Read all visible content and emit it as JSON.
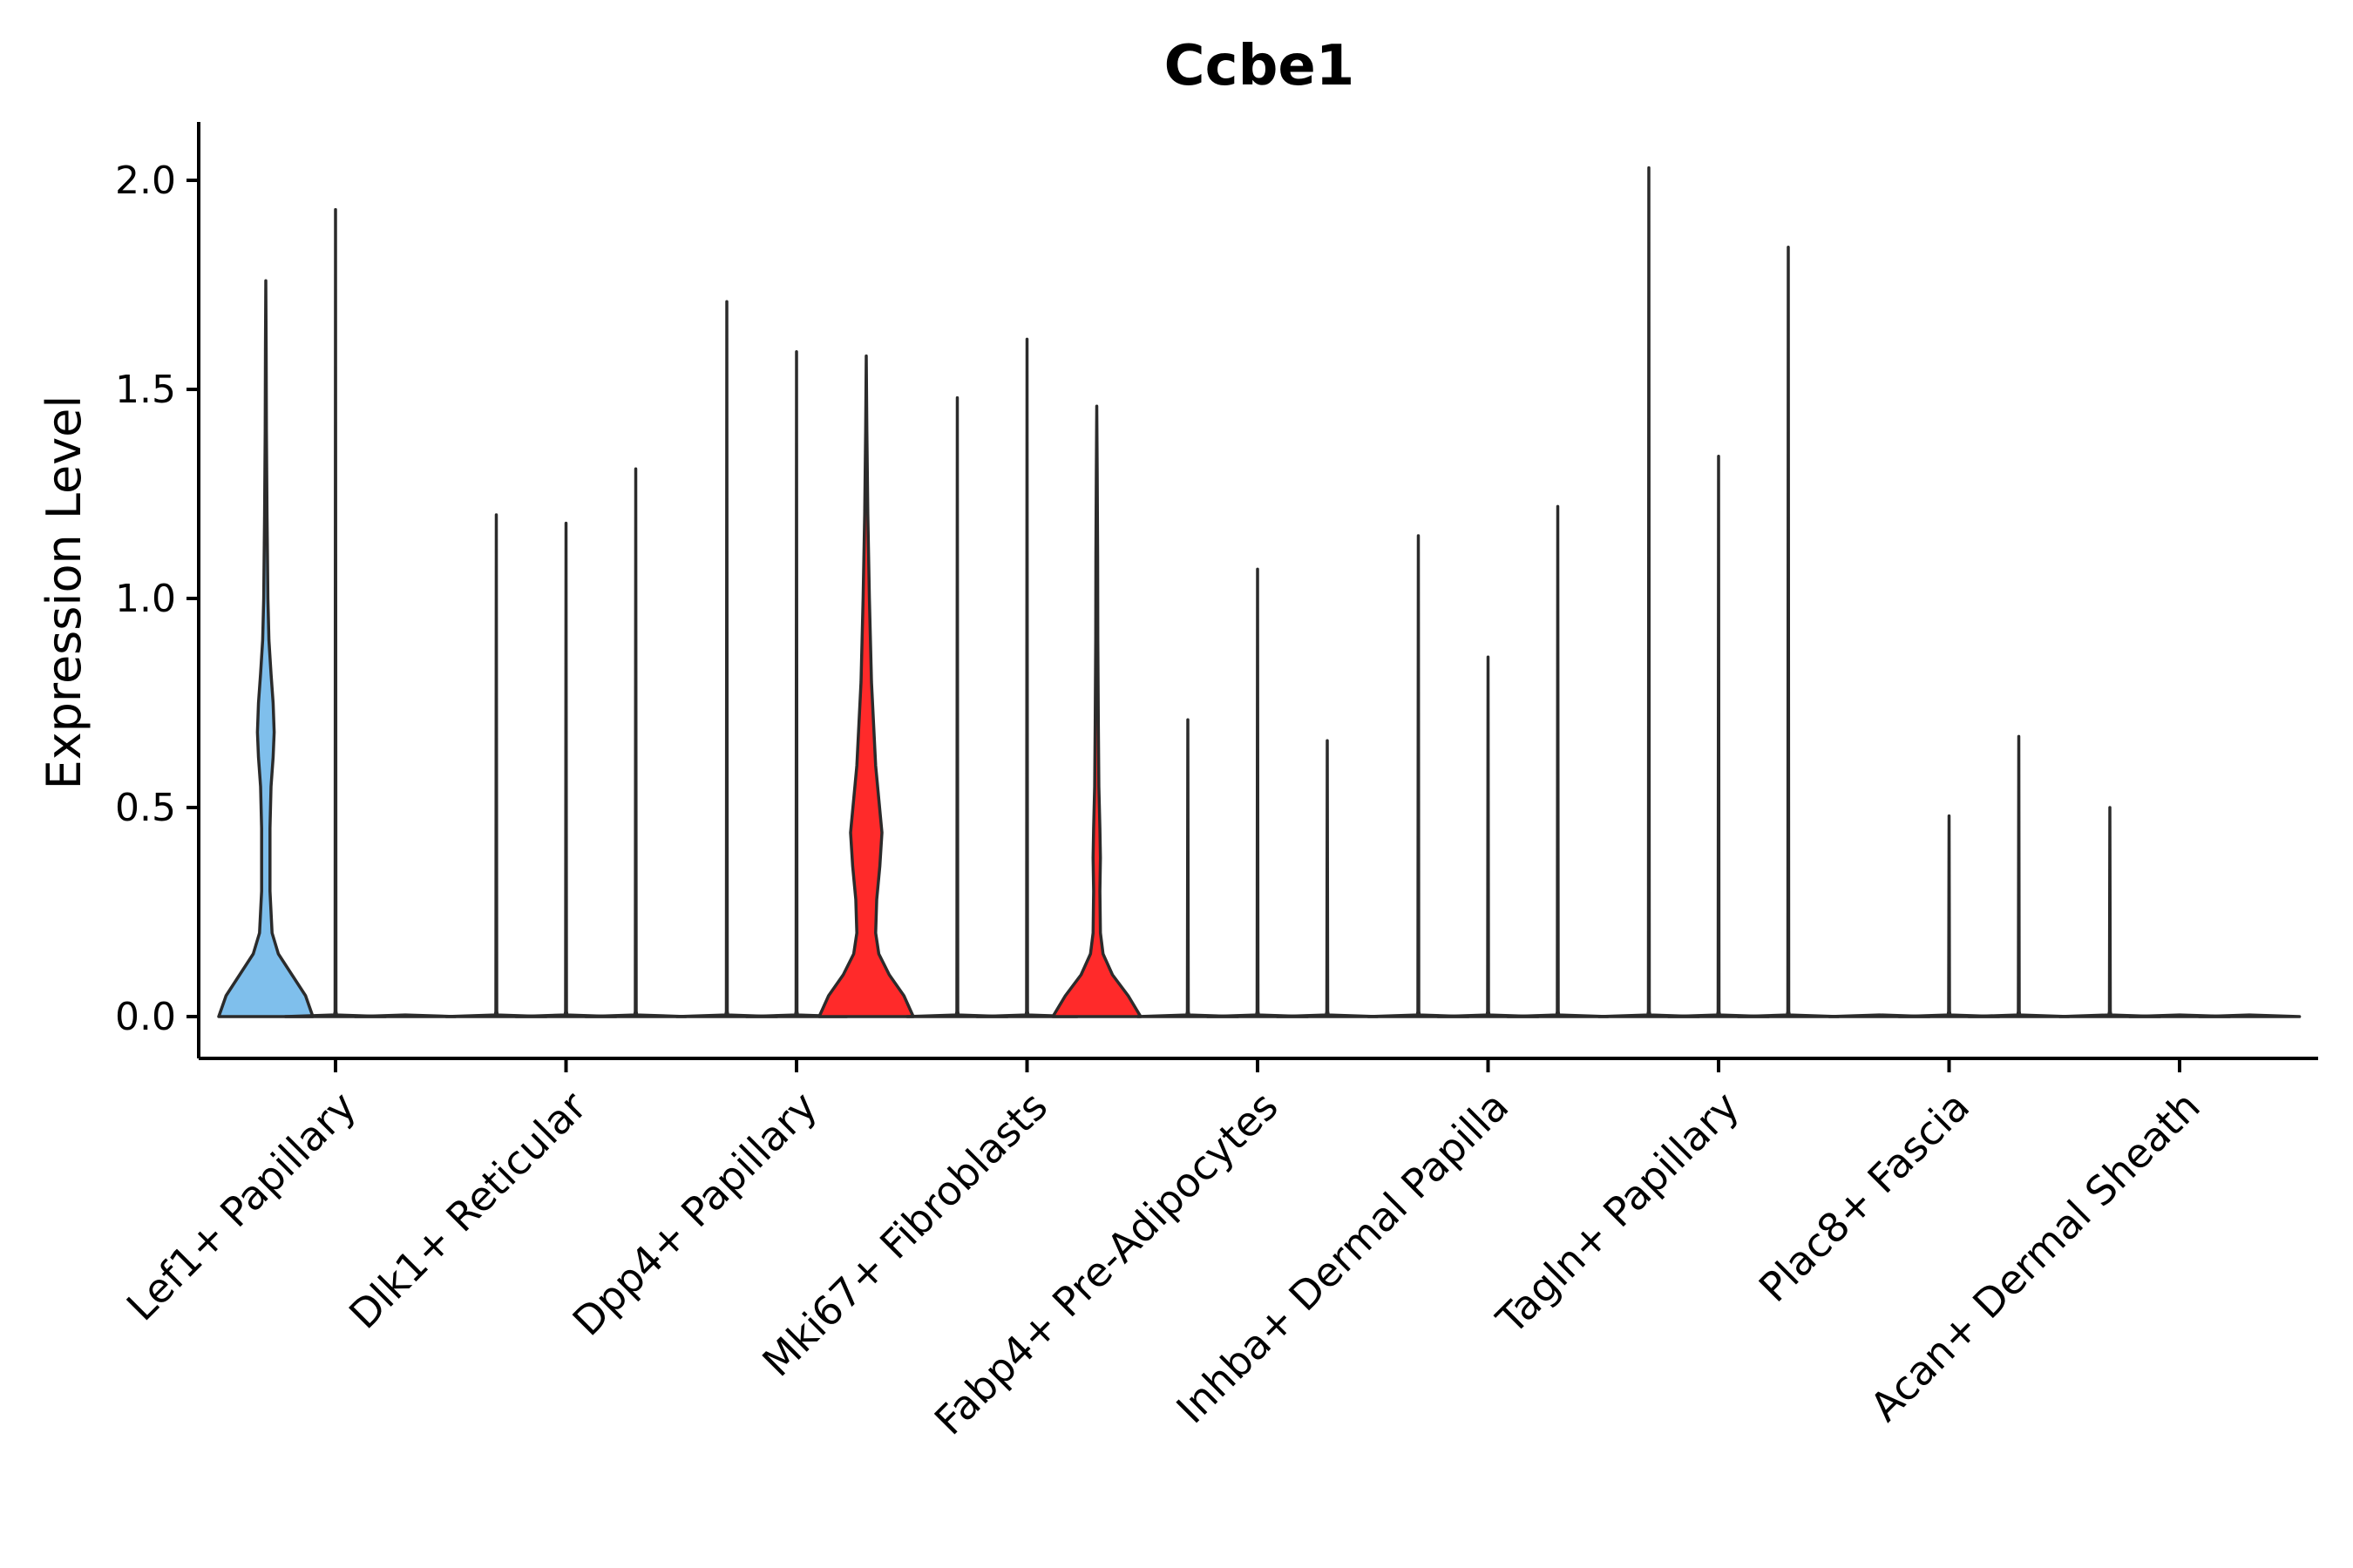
{
  "chart_data": {
    "type": "violin",
    "title": "Ccbe1",
    "ylabel": "Expression Level",
    "xlabel": "",
    "ylim": [
      -0.1,
      2.15
    ],
    "yticks": [
      "0.0",
      "0.5",
      "1.0",
      "1.5",
      "2.0"
    ],
    "ytick_values": [
      0,
      0.5,
      1.0,
      1.5,
      2.0
    ],
    "grid": false,
    "legend": "none",
    "colors": {
      "blue": "#7fbfec",
      "red": "#ff2a2a",
      "none": "#ffffff",
      "outline": "#2b2b2b"
    },
    "categories": [
      "Lef1+ Papillary",
      "Dlk1+ Reticular",
      "Dpp4+ Papillary",
      "Mki67+ Fibroblasts",
      "Fabp4+ Pre-Adipocytes",
      "Inhba+ Dermal Papilla",
      "Tagln+ Papillary",
      "Plac8+ Fascia",
      "Acan+ Dermal Sheath"
    ],
    "groups_per_category": 3,
    "violins": [
      {
        "category": "Lef1+ Papillary",
        "slot": 1,
        "fill": "blue",
        "max": 1.76,
        "profile": [
          [
            0,
            0.45
          ],
          [
            0.05,
            0.38
          ],
          [
            0.1,
            0.25
          ],
          [
            0.15,
            0.12
          ],
          [
            0.2,
            0.06
          ],
          [
            0.3,
            0.04
          ],
          [
            0.45,
            0.04
          ],
          [
            0.55,
            0.05
          ],
          [
            0.62,
            0.07
          ],
          [
            0.68,
            0.08
          ],
          [
            0.75,
            0.07
          ],
          [
            0.82,
            0.05
          ],
          [
            0.9,
            0.03
          ],
          [
            1.0,
            0.02
          ],
          [
            1.2,
            0.012
          ],
          [
            1.4,
            0.006
          ],
          [
            1.6,
            0.003
          ],
          [
            1.76,
            0
          ]
        ]
      },
      {
        "category": "Lef1+ Papillary",
        "slot": 2,
        "fill": "none",
        "max": 1.93
      },
      {
        "category": "Lef1+ Papillary",
        "slot": 3,
        "fill": "none",
        "max": 0.0
      },
      {
        "category": "Dlk1+ Reticular",
        "slot": 1,
        "fill": "none",
        "max": 1.2
      },
      {
        "category": "Dlk1+ Reticular",
        "slot": 2,
        "fill": "none",
        "max": 1.18
      },
      {
        "category": "Dlk1+ Reticular",
        "slot": 3,
        "fill": "none",
        "max": 1.31
      },
      {
        "category": "Dpp4+ Papillary",
        "slot": 1,
        "fill": "none",
        "max": 1.71
      },
      {
        "category": "Dpp4+ Papillary",
        "slot": 2,
        "fill": "none",
        "max": 1.59
      },
      {
        "category": "Dpp4+ Papillary",
        "slot": 3,
        "fill": "red",
        "max": 1.58,
        "profile": [
          [
            0,
            0.45
          ],
          [
            0.05,
            0.36
          ],
          [
            0.1,
            0.22
          ],
          [
            0.15,
            0.12
          ],
          [
            0.2,
            0.09
          ],
          [
            0.28,
            0.1
          ],
          [
            0.36,
            0.13
          ],
          [
            0.44,
            0.15
          ],
          [
            0.52,
            0.12
          ],
          [
            0.6,
            0.09
          ],
          [
            0.7,
            0.07
          ],
          [
            0.8,
            0.05
          ],
          [
            0.9,
            0.04
          ],
          [
            1.0,
            0.03
          ],
          [
            1.2,
            0.015
          ],
          [
            1.4,
            0.006
          ],
          [
            1.58,
            0
          ]
        ]
      },
      {
        "category": "Mki67+ Fibroblasts",
        "slot": 1,
        "fill": "none",
        "max": 1.48
      },
      {
        "category": "Mki67+ Fibroblasts",
        "slot": 2,
        "fill": "none",
        "max": 1.62
      },
      {
        "category": "Mki67+ Fibroblasts",
        "slot": 3,
        "fill": "red",
        "max": 1.46,
        "profile": [
          [
            0,
            0.42
          ],
          [
            0.05,
            0.3
          ],
          [
            0.1,
            0.15
          ],
          [
            0.15,
            0.06
          ],
          [
            0.2,
            0.035
          ],
          [
            0.3,
            0.03
          ],
          [
            0.38,
            0.035
          ],
          [
            0.45,
            0.03
          ],
          [
            0.55,
            0.02
          ],
          [
            0.7,
            0.015
          ],
          [
            0.9,
            0.01
          ],
          [
            1.1,
            0.008
          ],
          [
            1.3,
            0.004
          ],
          [
            1.46,
            0
          ]
        ]
      },
      {
        "category": "Fabp4+ Pre-Adipocytes",
        "slot": 1,
        "fill": "none",
        "max": 0.71
      },
      {
        "category": "Fabp4+ Pre-Adipocytes",
        "slot": 2,
        "fill": "none",
        "max": 1.07
      },
      {
        "category": "Fabp4+ Pre-Adipocytes",
        "slot": 3,
        "fill": "none",
        "max": 0.66
      },
      {
        "category": "Inhba+ Dermal Papilla",
        "slot": 1,
        "fill": "none",
        "max": 1.15
      },
      {
        "category": "Inhba+ Dermal Papilla",
        "slot": 2,
        "fill": "none",
        "max": 0.86
      },
      {
        "category": "Inhba+ Dermal Papilla",
        "slot": 3,
        "fill": "none",
        "max": 1.22
      },
      {
        "category": "Tagln+ Papillary",
        "slot": 1,
        "fill": "none",
        "max": 2.03
      },
      {
        "category": "Tagln+ Papillary",
        "slot": 2,
        "fill": "none",
        "max": 1.34
      },
      {
        "category": "Tagln+ Papillary",
        "slot": 3,
        "fill": "none",
        "max": 1.84
      },
      {
        "category": "Plac8+ Fascia",
        "slot": 1,
        "fill": "none",
        "max": 0.0
      },
      {
        "category": "Plac8+ Fascia",
        "slot": 2,
        "fill": "none",
        "max": 0.48
      },
      {
        "category": "Plac8+ Fascia",
        "slot": 3,
        "fill": "none",
        "max": 0.67
      },
      {
        "category": "Acan+ Dermal Sheath",
        "slot": 1,
        "fill": "none",
        "max": 0.5
      },
      {
        "category": "Acan+ Dermal Sheath",
        "slot": 2,
        "fill": "none",
        "max": 0.0
      },
      {
        "category": "Acan+ Dermal Sheath",
        "slot": 3,
        "fill": "none",
        "max": 0.0
      }
    ]
  }
}
